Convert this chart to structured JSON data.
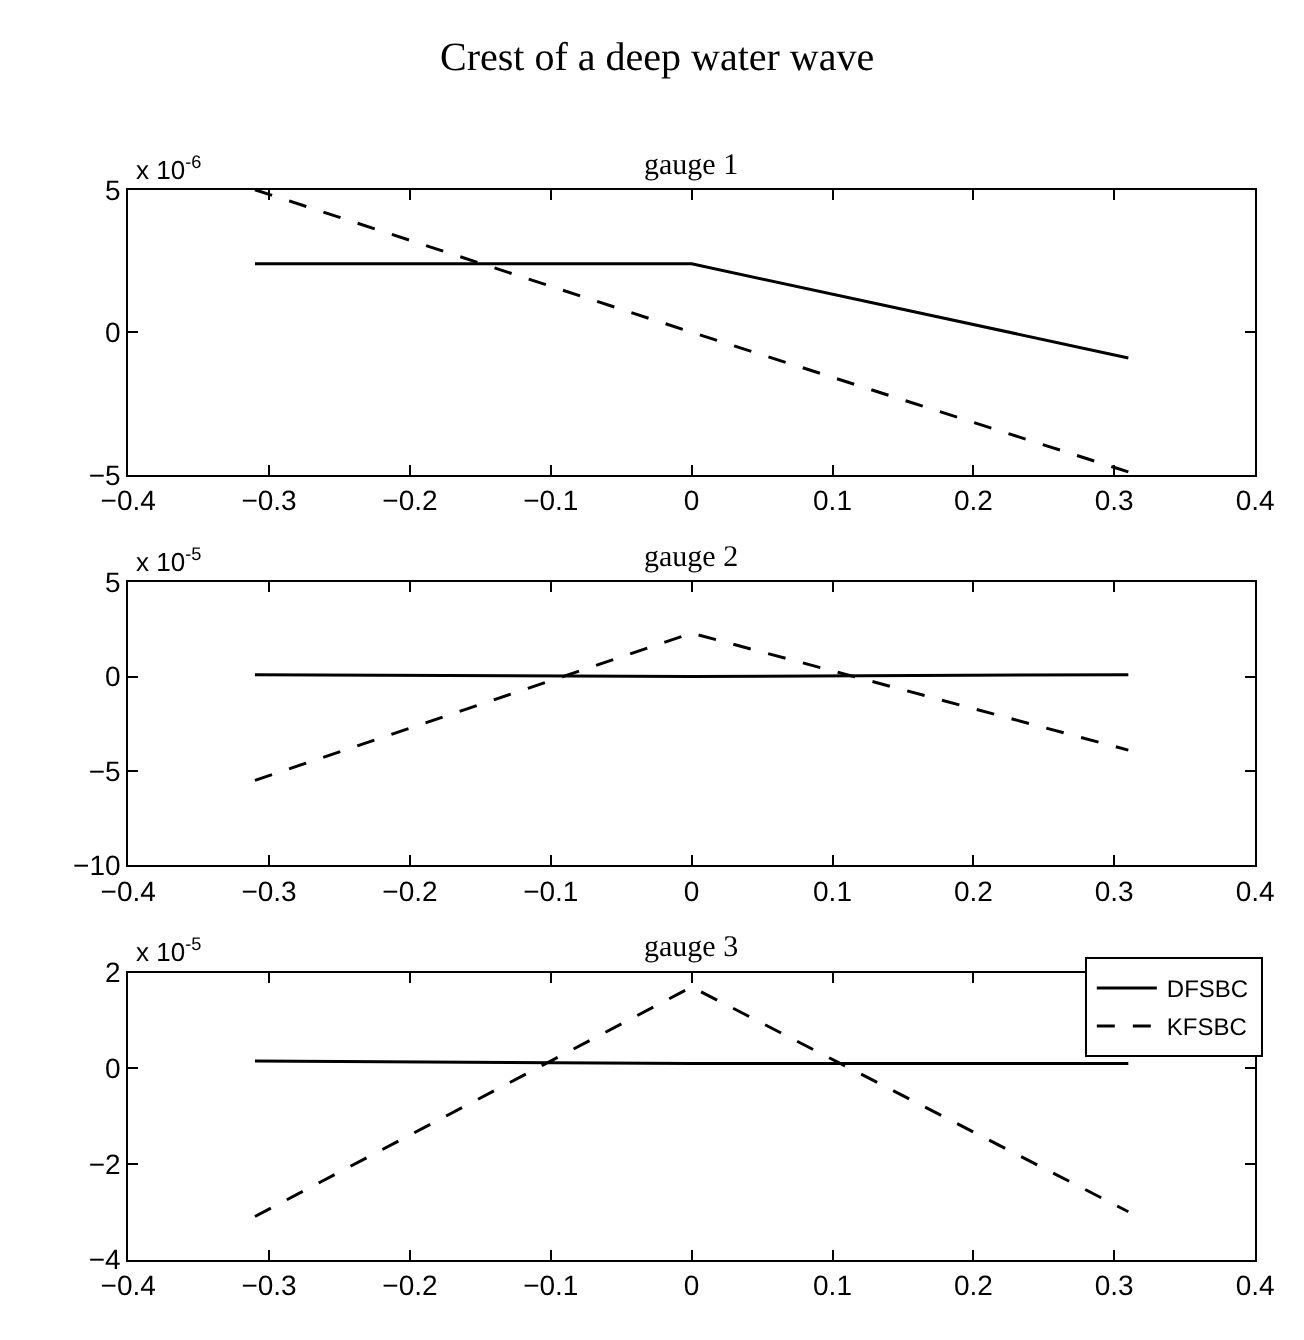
{
  "chart_data": [
    {
      "type": "line",
      "title": "Crest of a deep water wave",
      "subtitle": "gauge 1",
      "annotations": [
        "x 10$^{-6}$"
      ],
      "x": [
        -0.31,
        0,
        0.31
      ],
      "series": [
        {
          "color": "#000000",
          "line_style": "solid",
          "values": [
            2.4,
            2.4,
            -0.9
          ]
        },
        {
          "color": "#000000",
          "line_style": "dashed",
          "values": [
            5,
            0,
            -4.9
          ]
        }
      ],
      "xlim": [
        -0.4,
        0.4
      ],
      "xticks": [
        -0.4,
        -0.3,
        -0.2,
        -0.1,
        0,
        0.1,
        0.2,
        0.3,
        0.4
      ],
      "ylim": [
        -5,
        5
      ],
      "yticks": [
        -5,
        0,
        5
      ],
      "legend": false
    },
    {
      "type": "line",
      "title": "gauge 2",
      "annotations": [
        "x 10$^{-5}$"
      ],
      "x": [
        -0.31,
        0,
        0.31
      ],
      "series": [
        {
          "color": "#000000",
          "line_style": "solid",
          "values": [
            0.1,
            0,
            0.1
          ]
        },
        {
          "color": "#000000",
          "line_style": "dashed",
          "values": [
            -5.5,
            2.3,
            -3.9
          ]
        }
      ],
      "xlim": [
        -0.4,
        0.4
      ],
      "xticks": [
        -0.4,
        -0.3,
        -0.2,
        -0.1,
        0,
        0.1,
        0.2,
        0.3,
        0.4
      ],
      "ylim": [
        -10,
        5
      ],
      "yticks": [
        -10,
        -5,
        0,
        5
      ],
      "legend": false
    },
    {
      "type": "line",
      "title": "gauge 3",
      "annotations": [
        "x 10$^{-5}$"
      ],
      "x": [
        -0.31,
        0,
        0.31
      ],
      "series": [
        {
          "name": "DFSBC",
          "color": "#000000",
          "line_style": "solid",
          "values": [
            0.15,
            0.1,
            0.1
          ]
        },
        {
          "name": "KFSBC",
          "color": "#000000",
          "line_style": "dashed",
          "values": [
            -3.1,
            1.7,
            -3.0
          ]
        }
      ],
      "xlim": [
        -0.4,
        0.4
      ],
      "xticks": [
        -0.4,
        -0.3,
        -0.2,
        -0.1,
        0,
        0.1,
        0.2,
        0.3,
        0.4
      ],
      "ylim": [
        -4,
        2
      ],
      "yticks": [
        -4,
        -2,
        0,
        2
      ],
      "legend": "top right"
    }
  ]
}
